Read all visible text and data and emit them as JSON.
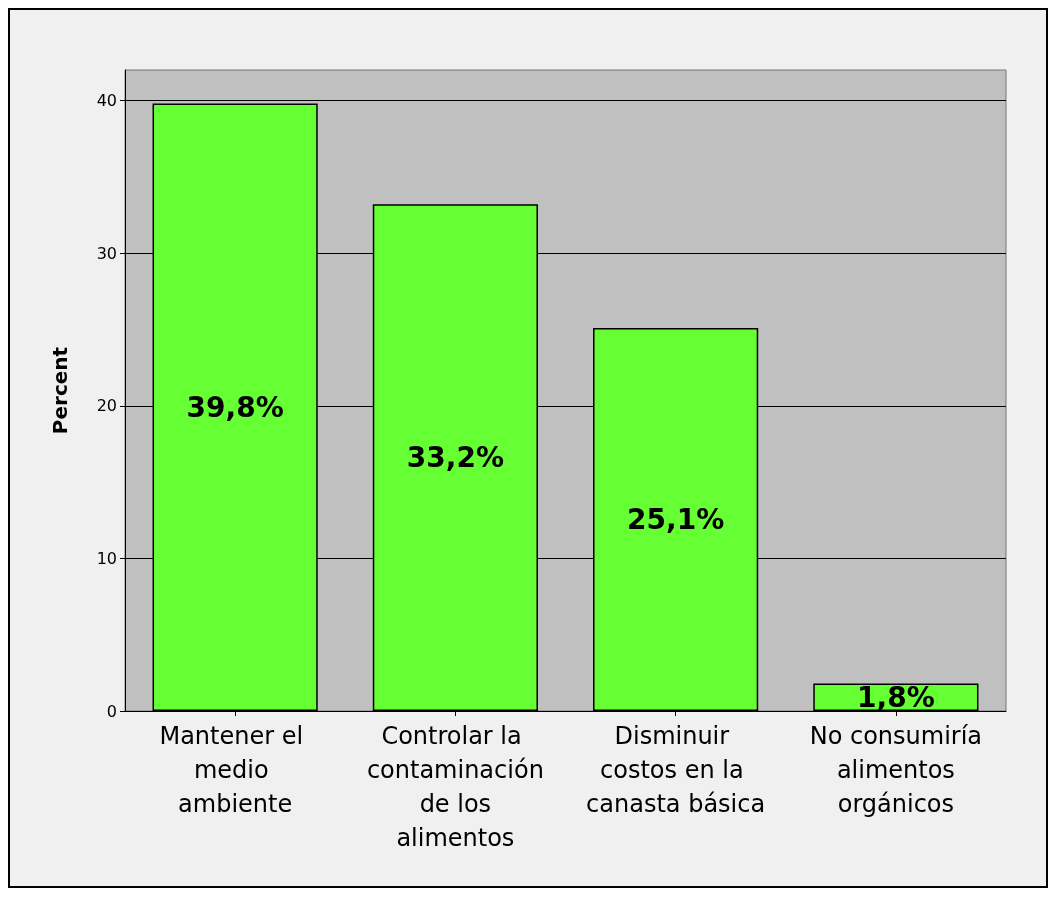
{
  "chart_data": {
    "type": "bar",
    "ylabel": "Percent",
    "categories": [
      "Mantener el medio ambiente",
      "Controlar la contaminación de los alimentos",
      "Disminuir costos en la canasta básica",
      "No consumiría alimentos orgánicos"
    ],
    "values": [
      39.8,
      33.2,
      25.1,
      1.8
    ],
    "value_labels": [
      "39,8%",
      "33,2%",
      "25,1%",
      "1,8%"
    ],
    "color": "#66ff33",
    "ylim": [
      0,
      42
    ],
    "yticks": [
      0,
      10,
      20,
      30,
      40
    ],
    "grid": "y"
  }
}
